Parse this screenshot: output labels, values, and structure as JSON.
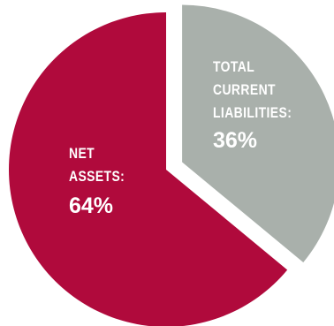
{
  "chart_data": {
    "type": "pie",
    "slices": [
      {
        "label_lines": [
          "TOTAL",
          "CURRENT",
          "LIABILITIES:"
        ],
        "value_label": "36%",
        "value": 36,
        "color": "#a9b0ab",
        "exploded": true
      },
      {
        "label_lines": [
          "NET",
          "ASSETS:"
        ],
        "value_label": "64%",
        "value": 64,
        "color": "#b00a3c",
        "exploded": false
      }
    ],
    "start": "top",
    "direction": "clockwise"
  }
}
